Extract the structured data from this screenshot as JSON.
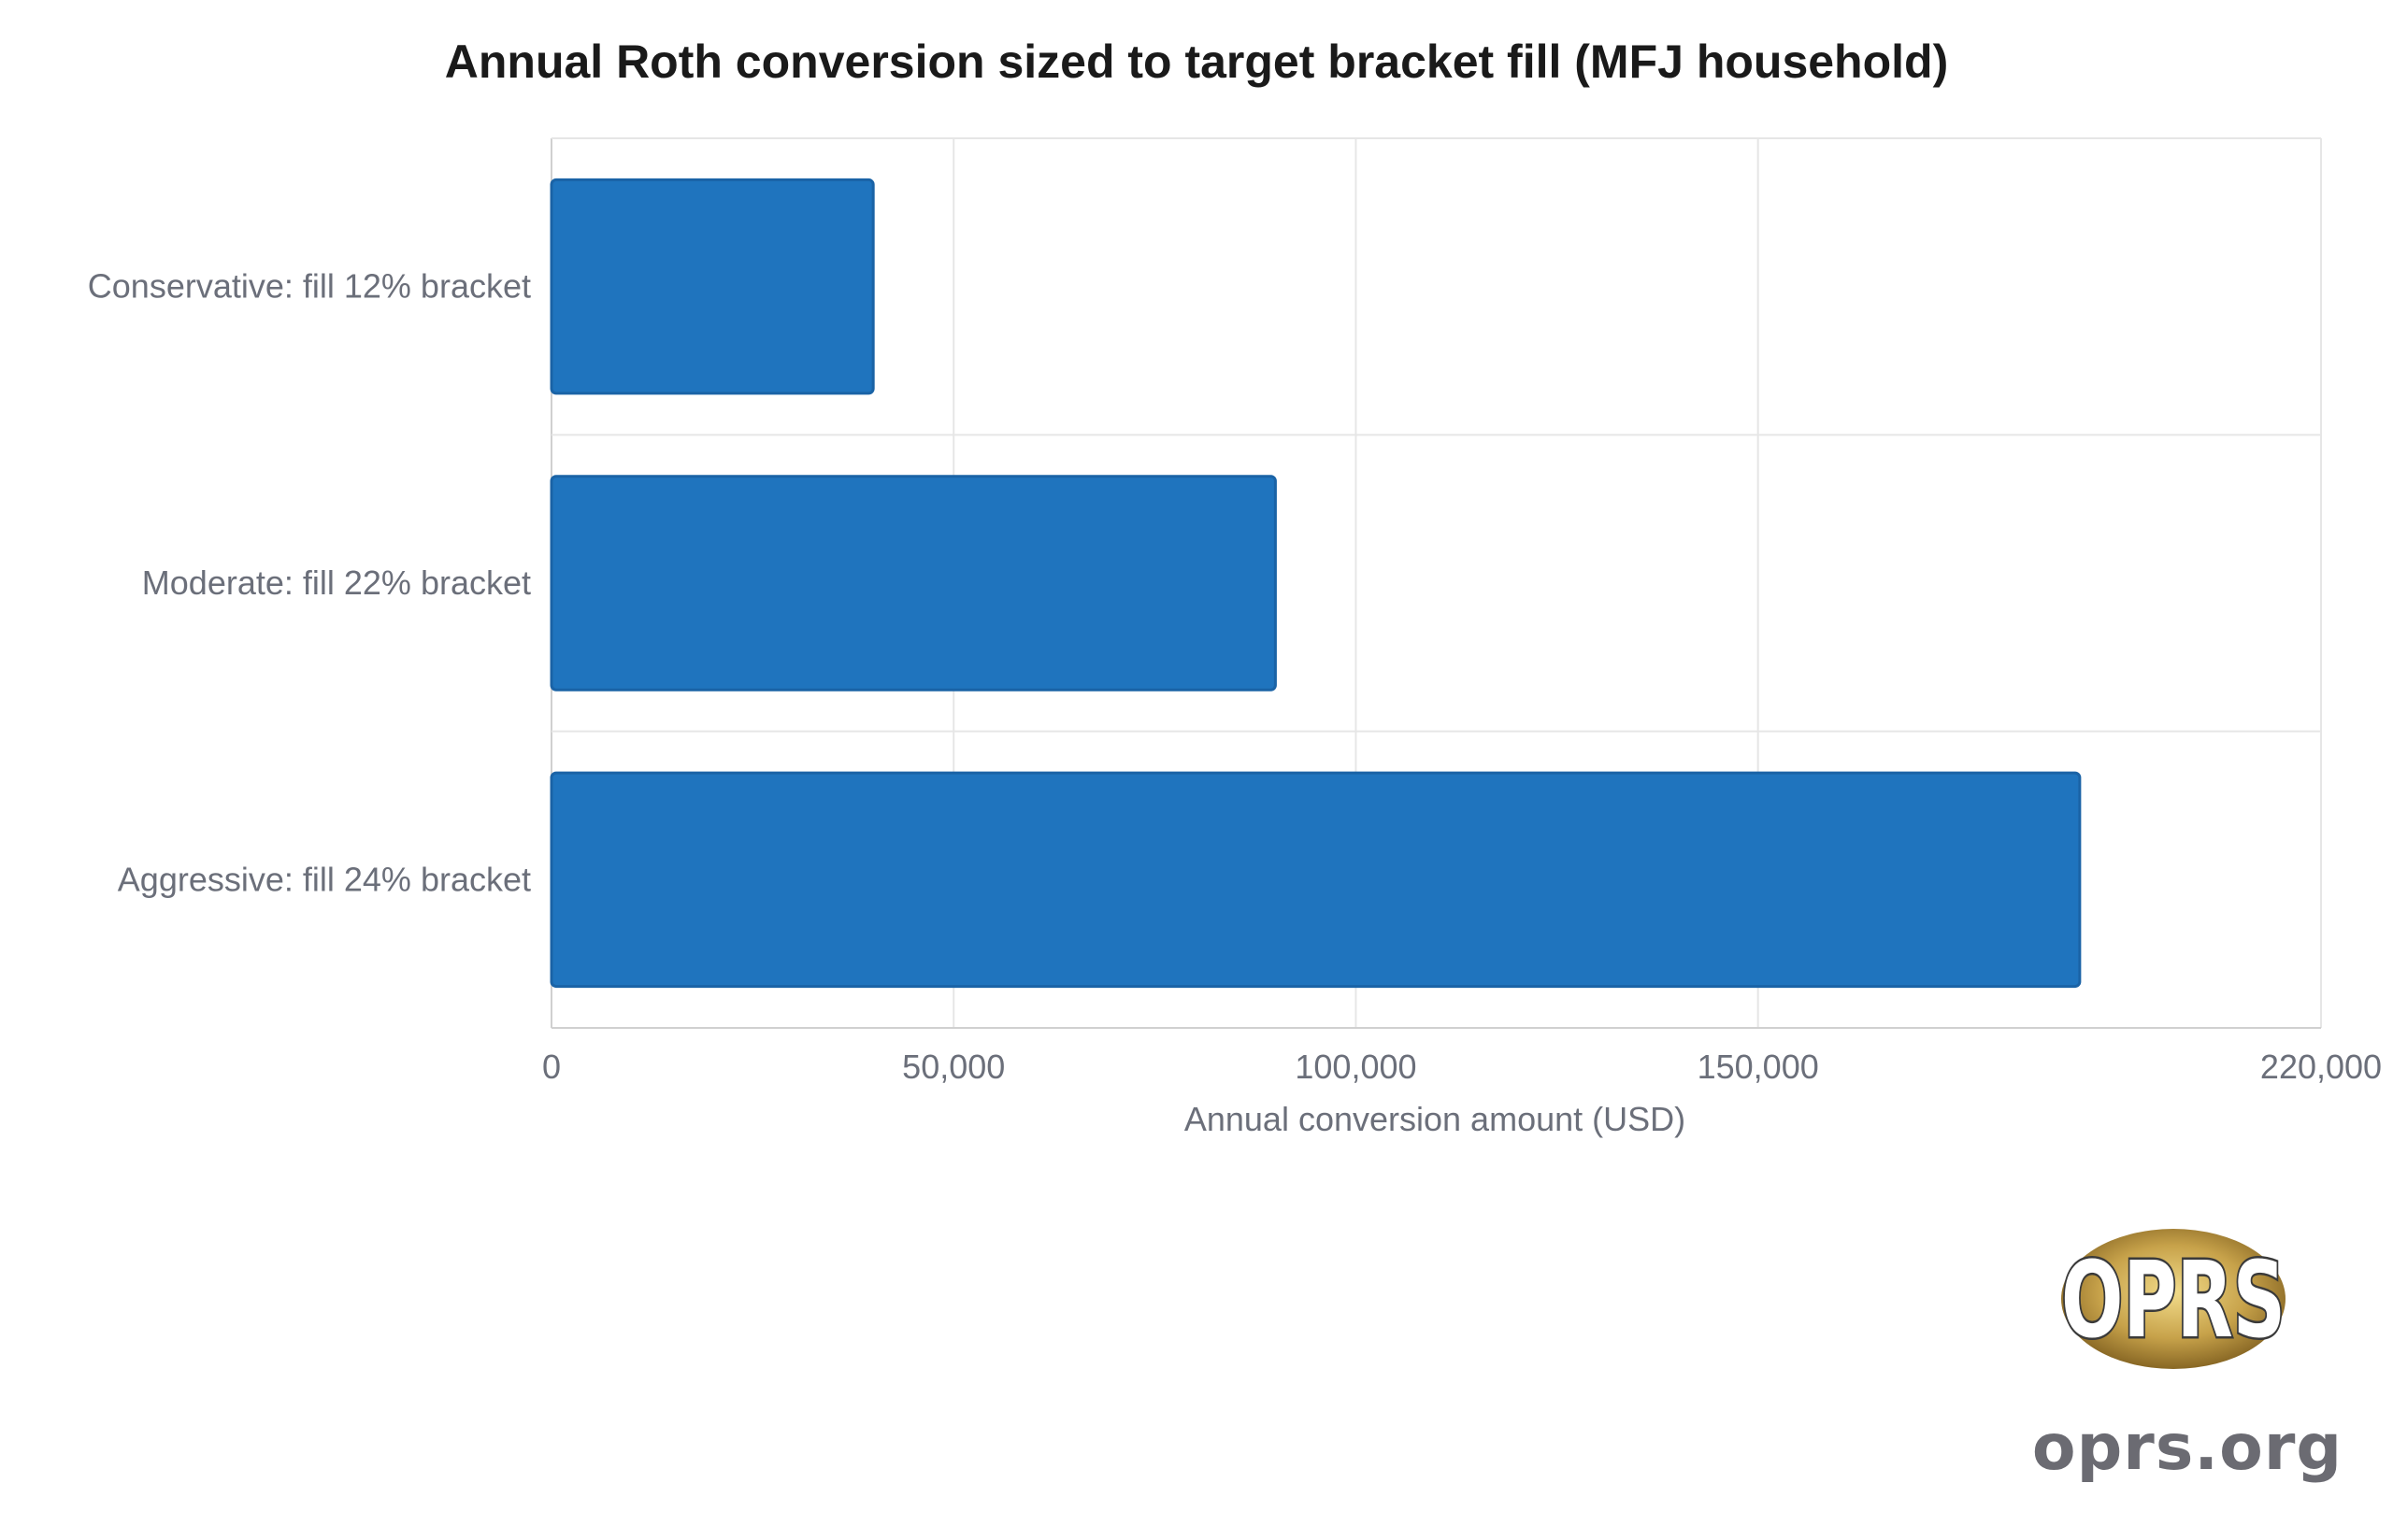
{
  "chart_data": {
    "type": "bar",
    "orientation": "horizontal",
    "title": "Annual Roth conversion sized to target bracket fill (MFJ household)",
    "xlabel": "Annual conversion amount (USD)",
    "ylabel": "",
    "categories": [
      "Conservative: fill 12% bracket",
      "Moderate: fill 22% bracket",
      "Aggressive: fill 24% bracket"
    ],
    "values": [
      40000,
      90000,
      190000
    ],
    "xlim": [
      0,
      220000
    ],
    "xticks": [
      0,
      50000,
      100000,
      150000,
      220000
    ],
    "xtick_labels": [
      "0",
      "50,000",
      "100,000",
      "150,000",
      "220,000"
    ],
    "grid": true,
    "legend": "none",
    "bar_color": "#1f74be",
    "bar_edge_color": "#1a63a6",
    "grid_color": "#e6e6e6",
    "text_color": "#6b6f7a",
    "title_color": "#1a1a1a"
  },
  "watermark": {
    "logo_text": "OPRS",
    "url_text": "oprs.org",
    "gold": "#c7a24a"
  }
}
